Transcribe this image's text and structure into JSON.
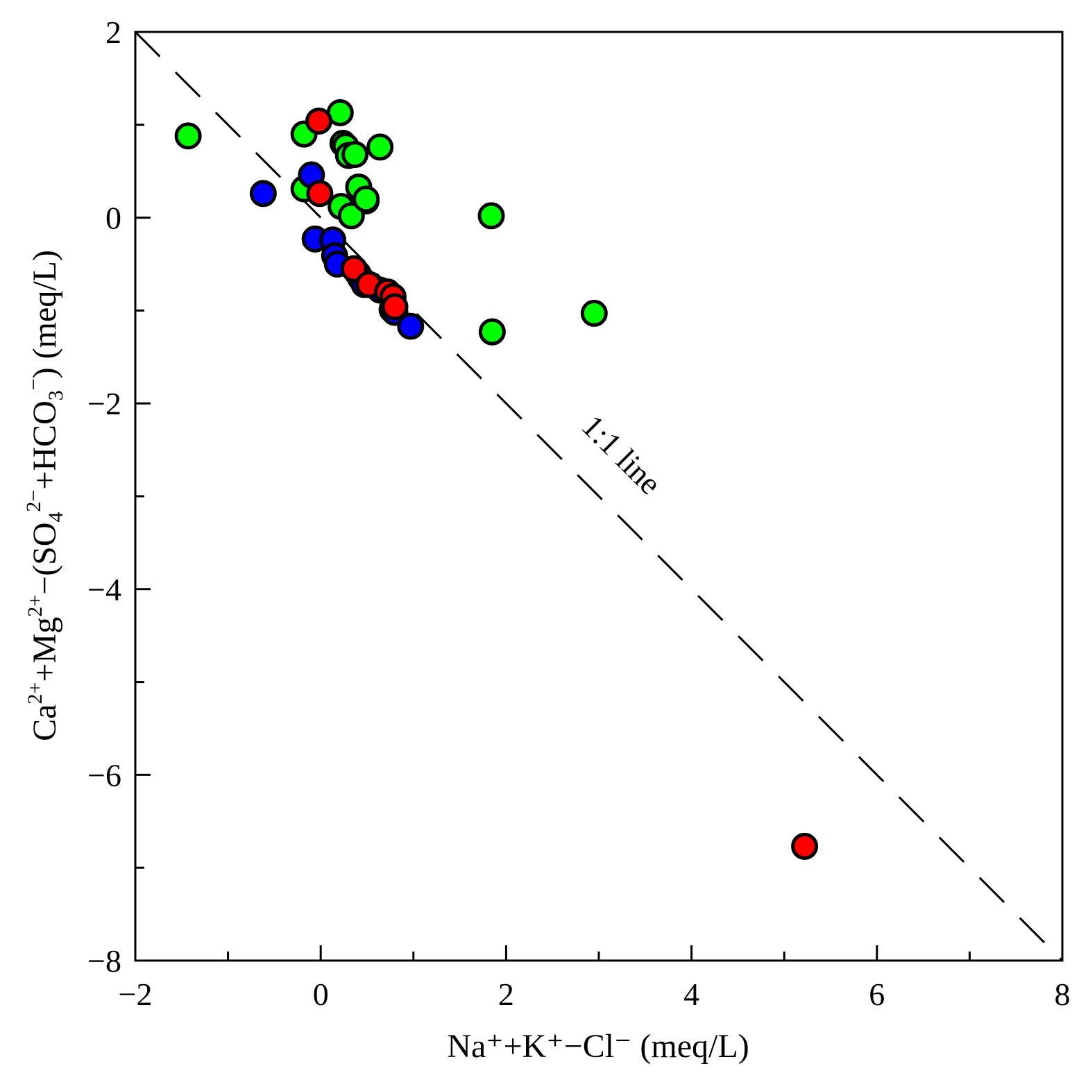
{
  "chart_data": {
    "type": "scatter",
    "title": "",
    "xlabel": "Na⁺+K⁺−Cl⁻ (meq/L)",
    "ylabel_parts": {
      "ca": "Ca",
      "ca_sup": "2+",
      "mg": "+Mg",
      "mg_sup": "2+",
      "minus_open": "−(SO",
      "so4_sub": "4",
      "so4_sup": "2−",
      "hco3": "+HCO",
      "hco3_sub": "3",
      "hco3_sup": "−",
      "close": ") (meq/L)"
    },
    "xlim": [
      -2,
      8
    ],
    "ylim": [
      -8,
      2
    ],
    "x_major_ticks": [
      -2,
      0,
      2,
      4,
      6,
      8
    ],
    "y_major_ticks": [
      2,
      0,
      -2,
      -4,
      -6,
      -8
    ],
    "x_tick_labels": [
      "−2",
      "0",
      "2",
      "4",
      "6",
      "8"
    ],
    "y_tick_labels": [
      "2",
      "0",
      "−2",
      "−4",
      "−6",
      "−8"
    ],
    "reference_line": {
      "label": "1:1 line",
      "points": [
        [
          -2,
          2
        ],
        [
          8,
          -8
        ]
      ],
      "style": "dashed"
    },
    "series": [
      {
        "name": "green",
        "color": "#00ff00",
        "points": [
          [
            -1.43,
            0.88
          ],
          [
            -0.18,
            0.9
          ],
          [
            0.21,
            1.13
          ],
          [
            0.24,
            0.8
          ],
          [
            0.27,
            0.77
          ],
          [
            0.3,
            0.67
          ],
          [
            0.37,
            0.68
          ],
          [
            0.64,
            0.76
          ],
          [
            -0.18,
            0.31
          ],
          [
            0.49,
            0.18
          ],
          [
            0.47,
            0.19
          ],
          [
            0.22,
            0.12
          ],
          [
            0.33,
            0.02
          ],
          [
            0.41,
            0.33
          ],
          [
            0.49,
            0.2
          ],
          [
            1.84,
            0.02
          ],
          [
            1.85,
            -1.23
          ],
          [
            2.95,
            -1.03
          ]
        ]
      },
      {
        "name": "blue",
        "color": "#0000ff",
        "points": [
          [
            -0.62,
            0.26
          ],
          [
            -0.1,
            0.46
          ],
          [
            -0.06,
            -0.23
          ],
          [
            0.13,
            -0.24
          ],
          [
            0.15,
            -0.41
          ],
          [
            0.18,
            -0.5
          ],
          [
            0.4,
            -0.6
          ],
          [
            0.43,
            -0.65
          ],
          [
            0.47,
            -0.72
          ],
          [
            0.64,
            -0.78
          ],
          [
            0.77,
            -0.99
          ],
          [
            0.8,
            -1.02
          ],
          [
            0.97,
            -1.17
          ]
        ]
      },
      {
        "name": "red",
        "color": "#ff0000",
        "points": [
          [
            -0.02,
            1.04
          ],
          [
            -0.01,
            0.26
          ],
          [
            0.36,
            -0.55
          ],
          [
            0.52,
            -0.72
          ],
          [
            0.72,
            -0.8
          ],
          [
            0.78,
            -0.85
          ],
          [
            0.8,
            -0.96
          ],
          [
            5.22,
            -6.77
          ]
        ]
      }
    ]
  }
}
